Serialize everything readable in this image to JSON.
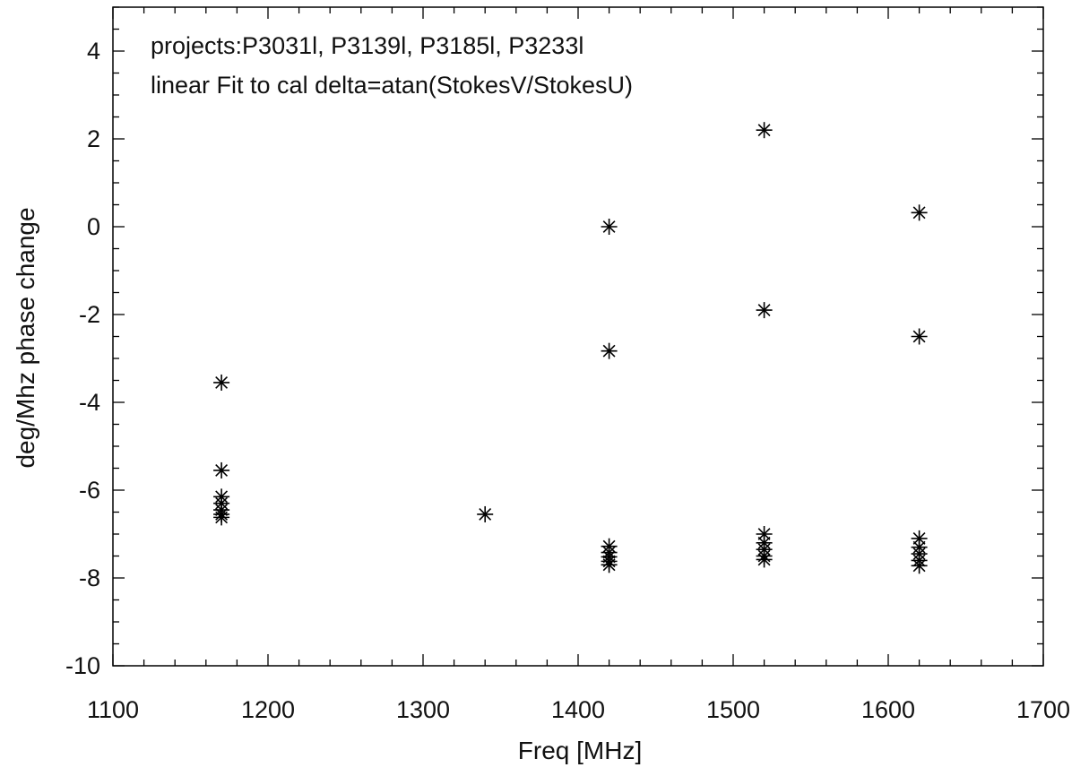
{
  "chart_data": {
    "type": "scatter",
    "annotations": [
      "projects:P3031l, P3139l, P3185l, P3233l",
      "linear Fit to cal delta=atan(StokesV/StokesU)"
    ],
    "xlabel": "Freq [MHz]",
    "ylabel": "deg/Mhz phase change",
    "xlim": [
      1100,
      1700
    ],
    "ylim": [
      -10,
      5
    ],
    "x_ticks": [
      1100,
      1200,
      1300,
      1400,
      1500,
      1600,
      1700
    ],
    "x_tick_labels": [
      "1100",
      "1200",
      "1300",
      "1400",
      "1500",
      "1600",
      "1700"
    ],
    "y_ticks": [
      -10,
      -8,
      -6,
      -4,
      -2,
      0,
      2,
      4
    ],
    "y_tick_labels": [
      "-10",
      "-8",
      "-6",
      "-4",
      "-2",
      "0",
      "2",
      "4"
    ],
    "marker": "asterisk",
    "grid": false,
    "colors": {
      "marks": "#000000",
      "axes": "#000000"
    },
    "points": [
      {
        "x": 1170,
        "y": -3.55
      },
      {
        "x": 1170,
        "y": -5.55
      },
      {
        "x": 1170,
        "y": -6.15
      },
      {
        "x": 1170,
        "y": -6.3
      },
      {
        "x": 1170,
        "y": -6.45
      },
      {
        "x": 1170,
        "y": -6.55
      },
      {
        "x": 1170,
        "y": -6.62
      },
      {
        "x": 1340,
        "y": -6.55
      },
      {
        "x": 1420,
        "y": 0.0
      },
      {
        "x": 1420,
        "y": -2.83
      },
      {
        "x": 1420,
        "y": -7.28
      },
      {
        "x": 1420,
        "y": -7.42
      },
      {
        "x": 1420,
        "y": -7.52
      },
      {
        "x": 1420,
        "y": -7.62
      },
      {
        "x": 1420,
        "y": -7.7
      },
      {
        "x": 1520,
        "y": 2.2
      },
      {
        "x": 1520,
        "y": -1.9
      },
      {
        "x": 1520,
        "y": -7.0
      },
      {
        "x": 1520,
        "y": -7.2
      },
      {
        "x": 1520,
        "y": -7.35
      },
      {
        "x": 1520,
        "y": -7.5
      },
      {
        "x": 1520,
        "y": -7.58
      },
      {
        "x": 1620,
        "y": 0.32
      },
      {
        "x": 1620,
        "y": -2.5
      },
      {
        "x": 1620,
        "y": -7.1
      },
      {
        "x": 1620,
        "y": -7.3
      },
      {
        "x": 1620,
        "y": -7.45
      },
      {
        "x": 1620,
        "y": -7.6
      },
      {
        "x": 1620,
        "y": -7.72
      }
    ]
  }
}
